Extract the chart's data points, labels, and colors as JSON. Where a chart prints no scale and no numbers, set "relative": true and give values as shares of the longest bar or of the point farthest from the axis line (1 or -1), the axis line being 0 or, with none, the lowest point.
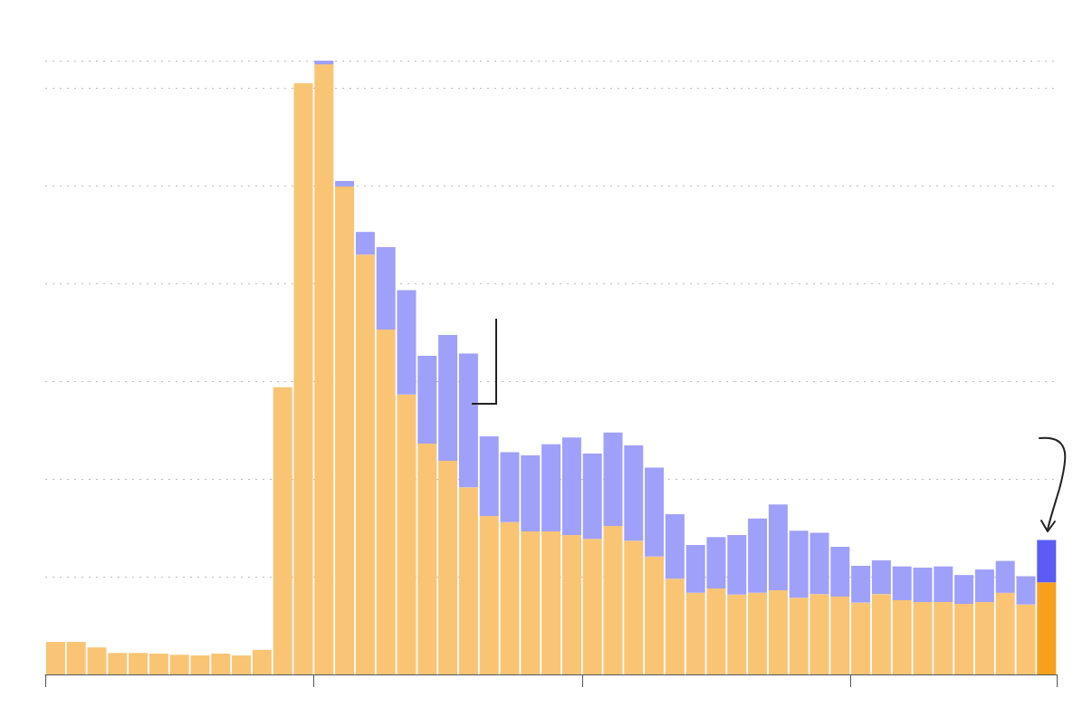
{
  "chart_data": {
    "type": "bar",
    "stacked": true,
    "relative": true,
    "categories": [
      null,
      null,
      null,
      null,
      null,
      null,
      null,
      null,
      null,
      null,
      null,
      null,
      null,
      null,
      null,
      null,
      null,
      null,
      null,
      null,
      null,
      null,
      null,
      null,
      null,
      null,
      null,
      null,
      null,
      null,
      null,
      null,
      null,
      null,
      null,
      null,
      null,
      null,
      null,
      null,
      null,
      null,
      null,
      null,
      null,
      null,
      null,
      null,
      null
    ],
    "grid": "y",
    "series": [
      {
        "colors": [
          "#f9c574",
          "#f9c574",
          "#f9c574",
          "#f9c574",
          "#f9c574",
          "#f9c574",
          "#f9c574",
          "#f9c574",
          "#f9c574",
          "#f9c574",
          "#f9c574",
          "#f9c574",
          "#f9c574",
          "#f9c574",
          "#f9c574",
          "#f9c574",
          "#f9c574",
          "#f9c574",
          "#f9c574",
          "#f9c574",
          "#f9c574",
          "#f9c574",
          "#f9c574",
          "#f9c574",
          "#f9c574",
          "#f9c574",
          "#f9c574",
          "#f9c574",
          "#f9c574",
          "#f9c574",
          "#f9c574",
          "#f9c574",
          "#f9c574",
          "#f9c574",
          "#f9c574",
          "#f9c574",
          "#f9c574",
          "#f9c574",
          "#f9c574",
          "#f9c574",
          "#f9c574",
          "#f9c574",
          "#f9c574",
          "#f9c574",
          "#f9c574",
          "#f9c574",
          "#f9c574",
          "#f9c574",
          "#f7a01e"
        ],
        "values": [
          0.053,
          0.053,
          0.044,
          0.035,
          0.035,
          0.034,
          0.032,
          0.031,
          0.034,
          0.031,
          0.04,
          0.468,
          0.963,
          0.994,
          0.795,
          0.684,
          0.562,
          0.456,
          0.376,
          0.348,
          0.305,
          0.258,
          0.248,
          0.233,
          0.233,
          0.227,
          0.221,
          0.242,
          0.218,
          0.192,
          0.156,
          0.133,
          0.14,
          0.13,
          0.133,
          0.137,
          0.125,
          0.131,
          0.127,
          0.117,
          0.131,
          0.121,
          0.118,
          0.118,
          0.115,
          0.118,
          0.133,
          0.114,
          0.15
        ]
      },
      {
        "colors": [
          "#9fa0f9",
          "#9fa0f9",
          "#9fa0f9",
          "#9fa0f9",
          "#9fa0f9",
          "#9fa0f9",
          "#9fa0f9",
          "#9fa0f9",
          "#9fa0f9",
          "#9fa0f9",
          "#9fa0f9",
          "#9fa0f9",
          "#9fa0f9",
          "#9fa0f9",
          "#9fa0f9",
          "#9fa0f9",
          "#9fa0f9",
          "#9fa0f9",
          "#9fa0f9",
          "#9fa0f9",
          "#9fa0f9",
          "#9fa0f9",
          "#9fa0f9",
          "#9fa0f9",
          "#9fa0f9",
          "#9fa0f9",
          "#9fa0f9",
          "#9fa0f9",
          "#9fa0f9",
          "#9fa0f9",
          "#9fa0f9",
          "#9fa0f9",
          "#9fa0f9",
          "#9fa0f9",
          "#9fa0f9",
          "#9fa0f9",
          "#9fa0f9",
          "#9fa0f9",
          "#9fa0f9",
          "#9fa0f9",
          "#9fa0f9",
          "#9fa0f9",
          "#9fa0f9",
          "#9fa0f9",
          "#9fa0f9",
          "#9fa0f9",
          "#9fa0f9",
          "#9fa0f9",
          "#5b5bf5"
        ],
        "values": [
          0,
          0,
          0,
          0,
          0,
          0,
          0,
          0,
          0,
          0,
          0,
          0,
          0,
          0.006,
          0.009,
          0.037,
          0.134,
          0.17,
          0.143,
          0.205,
          0.218,
          0.13,
          0.114,
          0.124,
          0.142,
          0.159,
          0.139,
          0.152,
          0.155,
          0.145,
          0.105,
          0.078,
          0.084,
          0.097,
          0.121,
          0.14,
          0.109,
          0.1,
          0.081,
          0.06,
          0.055,
          0.055,
          0.056,
          0.058,
          0.047,
          0.053,
          0.052,
          0.046,
          0.069
        ]
      }
    ]
  }
}
